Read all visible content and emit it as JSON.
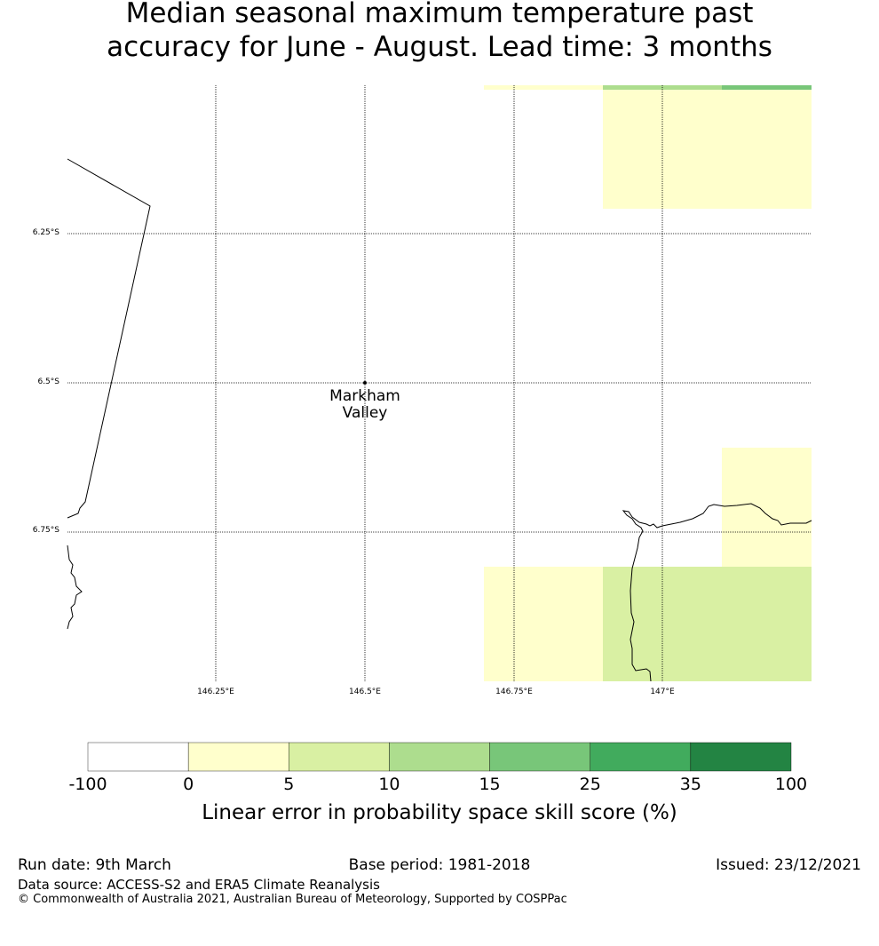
{
  "title_line1": "Median seasonal maximum temperature past",
  "title_line2": "accuracy for June - August. Lead time: 3 months",
  "map": {
    "lat_labels": [
      "6.25°S",
      "6.5°S",
      "6.75°S"
    ],
    "lon_labels": [
      "146.25°E",
      "146.5°E",
      "146.75°E",
      "147°E"
    ],
    "place_name_line1": "Markham",
    "place_name_line2": "Valley"
  },
  "legend": {
    "ticks": [
      "-100",
      "0",
      "5",
      "10",
      "15",
      "25",
      "35",
      "100"
    ],
    "colors": [
      "#ffffff",
      "#ffffcc",
      "#d9f0a3",
      "#addd8e",
      "#78c679",
      "#41ab5d",
      "#238443"
    ],
    "label": "Linear error in probability space skill score (%)"
  },
  "footer": {
    "run_date": "Run date: 9th March",
    "base_period": "Base period: 1981-2018",
    "issued": "Issued: 23/12/2021",
    "data_source": "Data source: ACCESS-S2 and ERA5 Climate Reanalysis",
    "copyright": "© Commonwealth of Australia 2021, Australian Bureau of Meteorology, Supported by COSPPac"
  }
}
